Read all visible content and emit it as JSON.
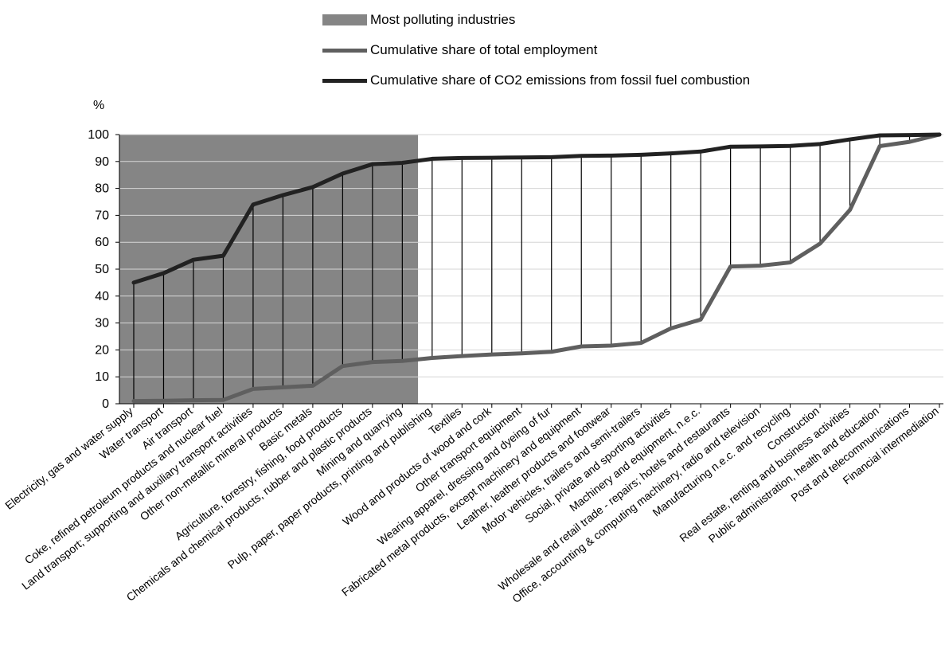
{
  "chart_data": {
    "type": "line",
    "ylabel": "%",
    "ylim": [
      0,
      100
    ],
    "yticks": [
      0,
      10,
      20,
      30,
      40,
      50,
      60,
      70,
      80,
      90,
      100
    ],
    "grid": true,
    "legend": [
      {
        "label": "Most polluting industries",
        "kind": "box",
        "color": "#858585"
      },
      {
        "label": "Cumulative share of total employment",
        "kind": "line",
        "color": "#5f5f5f"
      },
      {
        "label": "Cumulative share of CO2 emissions from fossil fuel combustion",
        "kind": "line",
        "color": "#222222"
      }
    ],
    "highlight": {
      "label": "Most polluting industries",
      "first_category": 0,
      "last_category": 9
    },
    "categories": [
      "Electricity, gas and water supply",
      "Water transport",
      "Air transport",
      "Coke, refined petroleum products and nuclear fuel",
      "Land transport; supporting and auxiliary transport activities",
      "Other non-metallic mineral products",
      "Basic metals",
      "Agriculture, forestry, fishing, food products",
      "Chemicals and chemical products, rubber and plastic products",
      "Mining and quarrying",
      "Pulp, paper, paper products, printing and publishing",
      "Textiles",
      "Wood and products of wood and cork",
      "Other transport equipment",
      "Wearing apparel, dressing and dyeing of fur",
      "Fabricated metal products, except machinery and equipment",
      "Leather, leather products and footwear",
      "Motor vehicles, trailers and semi-trailers",
      "Social, private and sporting activities",
      "Machinery and equipment, n.e.c.",
      "Wholesale and retail trade - repairs; hotels and restaurants",
      "Office, accounting & computing machinery, radio and television",
      "Manufacturing n.e.c. and recycling",
      "Construction",
      "Real estate, renting and business activities",
      "Public administration, health and education",
      "Post and telecommunications",
      "Financial intermediation"
    ],
    "series": [
      {
        "name": "Cumulative share of CO2 emissions from fossil fuel combustion",
        "color": "#222222",
        "values": [
          45,
          48.5,
          53.5,
          55,
          74,
          77.5,
          80.5,
          85.5,
          89,
          89.5,
          91,
          91.3,
          91.4,
          91.5,
          91.6,
          92.1,
          92.2,
          92.5,
          93,
          93.7,
          95.5,
          95.6,
          95.8,
          96.5,
          98.2,
          99.7,
          99.8,
          100
        ]
      },
      {
        "name": "Cumulative share of total employment",
        "color": "#5f5f5f",
        "values": [
          1,
          1.1,
          1.3,
          1.4,
          5.5,
          6.1,
          6.7,
          14,
          15.5,
          15.9,
          17,
          17.7,
          18.3,
          18.7,
          19.3,
          21.3,
          21.6,
          22.6,
          28,
          31.3,
          51,
          51.3,
          52.5,
          59.5,
          72,
          95.7,
          97.3,
          100
        ]
      }
    ]
  }
}
